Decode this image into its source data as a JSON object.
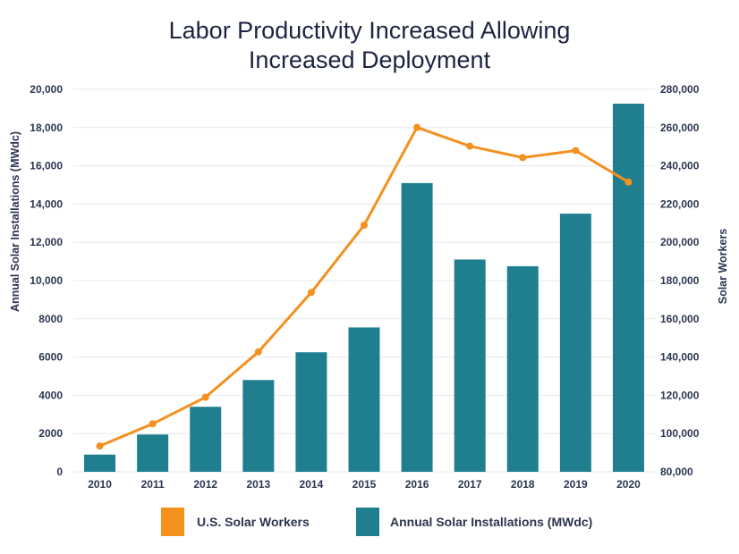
{
  "chart_data": {
    "type": "bar",
    "title_lines": [
      "Labor Productivity Increased Allowing",
      "Increased Deployment"
    ],
    "categories": [
      "2010",
      "2011",
      "2012",
      "2013",
      "2014",
      "2015",
      "2016",
      "2017",
      "2018",
      "2019",
      "2020"
    ],
    "y_left": {
      "label": "Annual Solar Installations (MWdc)",
      "range": [
        0,
        20000
      ],
      "ticks": [
        0,
        2000,
        4000,
        6000,
        8000,
        10000,
        12000,
        14000,
        16000,
        18000,
        20000
      ],
      "tick_labels": [
        "0",
        "2000",
        "4000",
        "6000",
        "8000",
        "10,000",
        "12,000",
        "14,000",
        "16,000",
        "18,000",
        "20,000"
      ]
    },
    "y_right": {
      "label": "Solar Workers",
      "range": [
        80000,
        280000
      ],
      "ticks": [
        80000,
        100000,
        120000,
        140000,
        160000,
        180000,
        200000,
        220000,
        240000,
        260000,
        280000
      ],
      "tick_labels": [
        "80,000",
        "100,000",
        "120,000",
        "140,000",
        "160,000",
        "180,000",
        "200,000",
        "220,000",
        "240,000",
        "260,000",
        "280,000"
      ]
    },
    "series": [
      {
        "name": "Annual Solar Installations (MWdc)",
        "type": "bar",
        "axis": "left",
        "color": "#1f7f8f",
        "values": [
          900,
          1950,
          3400,
          4800,
          6250,
          7550,
          15100,
          11100,
          10750,
          13500,
          19250
        ]
      },
      {
        "name": "U.S. Solar Workers",
        "type": "line",
        "axis": "right",
        "color": "#f4901e",
        "values": [
          93500,
          105100,
          119000,
          142700,
          173800,
          209000,
          260100,
          250300,
          244300,
          248000,
          231500
        ]
      }
    ],
    "legend": {
      "position": "bottom",
      "items": [
        {
          "label": "U.S. Solar Workers",
          "color": "#f4901e"
        },
        {
          "label": "Annual Solar Installations (MWdc)",
          "color": "#1f7f8f"
        }
      ]
    },
    "grid": true,
    "grid_color": "#e6e8ec"
  }
}
